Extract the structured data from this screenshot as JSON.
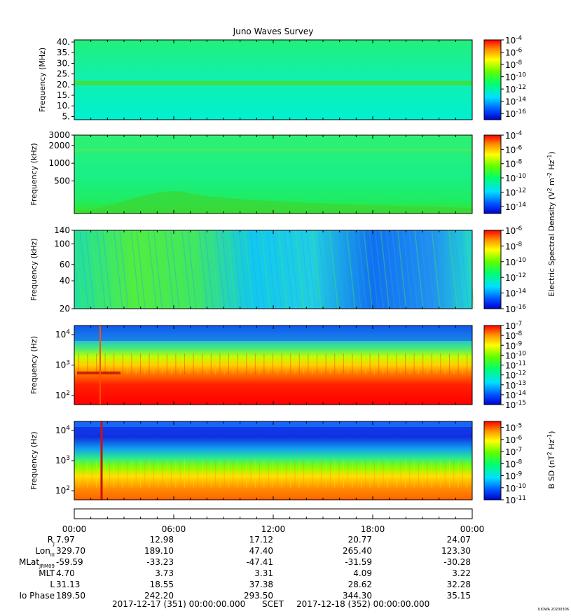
{
  "chart_data": {
    "type": "heatmap",
    "title": "Juno Waves Survey",
    "xaxis": {
      "tick_labels": [
        "00:00",
        "06:00",
        "12:00",
        "18:00",
        "00:00"
      ],
      "range_hours": [
        0,
        24
      ]
    },
    "panels": [
      {
        "ylabel": "Frequency (MHz)",
        "yscale": "linear",
        "ylim": [
          3.5,
          41
        ],
        "yticks": [
          {
            "value": 5,
            "label": "5."
          },
          {
            "value": 10,
            "label": "10."
          },
          {
            "value": 15,
            "label": "15."
          },
          {
            "value": 20,
            "label": "20."
          },
          {
            "value": 25,
            "label": "25."
          },
          {
            "value": 30,
            "label": "30."
          },
          {
            "value": 35,
            "label": "35."
          },
          {
            "value": 40,
            "label": "40."
          }
        ],
        "colorbar": {
          "min_exp": -17,
          "max_exp": -4,
          "label_exps": [
            -4,
            -6,
            -8,
            -10,
            -12,
            -14,
            -16
          ]
        }
      },
      {
        "ylabel": "Frequency (kHz)",
        "yscale": "log",
        "ylim": [
          140,
          3000
        ],
        "yticks": [
          {
            "value": 500,
            "label": "500"
          },
          {
            "value": 1000,
            "label": "1000"
          },
          {
            "value": 2000,
            "label": "2000"
          },
          {
            "value": 3000,
            "label": "3000"
          }
        ],
        "colorbar": {
          "min_exp": -15,
          "max_exp": -4,
          "label_exps": [
            -4,
            -6,
            -8,
            -10,
            -12,
            -14
          ]
        }
      },
      {
        "ylabel": "Frequency (kHz)",
        "yscale": "log",
        "ylim": [
          20,
          140
        ],
        "yticks": [
          {
            "value": 20,
            "label": "20"
          },
          {
            "value": 40,
            "label": "40"
          },
          {
            "value": 60,
            "label": "60"
          },
          {
            "value": 100,
            "label": "100"
          },
          {
            "value": 140,
            "label": "140"
          }
        ],
        "colorbar": {
          "min_exp": -16,
          "max_exp": -6,
          "label_exps": [
            -6,
            -8,
            -10,
            -12,
            -14,
            -16
          ]
        }
      },
      {
        "ylabel": "Frequency (Hz)",
        "yscale": "log",
        "ylim": [
          50,
          20000
        ],
        "yticks": [
          {
            "value": 100,
            "label": "10",
            "sup": "2"
          },
          {
            "value": 1000,
            "label": "10",
            "sup": "3"
          },
          {
            "value": 10000,
            "label": "10",
            "sup": "4"
          }
        ],
        "colorbar": {
          "min_exp": -15,
          "max_exp": -7,
          "label_exps": [
            -7,
            -8,
            -9,
            -10,
            -11,
            -12,
            -13,
            -14,
            -15
          ]
        }
      },
      {
        "ylabel": "Frequency (Hz)",
        "yscale": "log",
        "ylim": [
          50,
          20000
        ],
        "yticks": [
          {
            "value": 100,
            "label": "10",
            "sup": "2"
          },
          {
            "value": 1000,
            "label": "10",
            "sup": "3"
          },
          {
            "value": 10000,
            "label": "10",
            "sup": "4"
          }
        ],
        "colorbar": {
          "min_exp": -11,
          "max_exp": -4.5,
          "label_exps": [
            -5,
            -6,
            -7,
            -8,
            -9,
            -10,
            -11
          ]
        }
      }
    ],
    "colorbar_labels": {
      "electric": "Electric Spectral Density (V",
      "electric_parts": [
        "Electric Spectral Density (V",
        "2",
        " m",
        "-2",
        " Hz",
        "-1",
        ")"
      ],
      "magnetic_parts": [
        "B SD (nT",
        "2",
        " Hz",
        "-1",
        ")"
      ]
    },
    "ephemeris": {
      "rows": [
        {
          "label": "R",
          "sub": "J",
          "values": [
            "7.97",
            "12.98",
            "17.12",
            "20.77",
            "24.07"
          ]
        },
        {
          "label": "Lon",
          "sub": "III",
          "values": [
            "329.70",
            "189.10",
            "47.40",
            "265.40",
            "123.30"
          ]
        },
        {
          "label": "MLat",
          "sub": "JRM09",
          "values": [
            "-59.59",
            "-33.23",
            "-47.41",
            "-31.59",
            "-30.28"
          ]
        },
        {
          "label": "MLT",
          "sub": "",
          "values": [
            "4.70",
            "3.73",
            "3.31",
            "4.09",
            "3.22"
          ]
        },
        {
          "label": "L",
          "sub": "",
          "values": [
            "31.13",
            "18.55",
            "37.38",
            "28.62",
            "32.28"
          ]
        },
        {
          "label": "Io Phase",
          "sub": "",
          "values": [
            "189.50",
            "242.20",
            "293.50",
            "344.30",
            "35.15"
          ]
        }
      ]
    },
    "footer": {
      "start": "2017-12-17 (351) 00:00:00.000",
      "scet": "SCET",
      "end": "2017-12-18 (352) 00:00:00.000",
      "credit": "UIOWA 20200306"
    }
  }
}
